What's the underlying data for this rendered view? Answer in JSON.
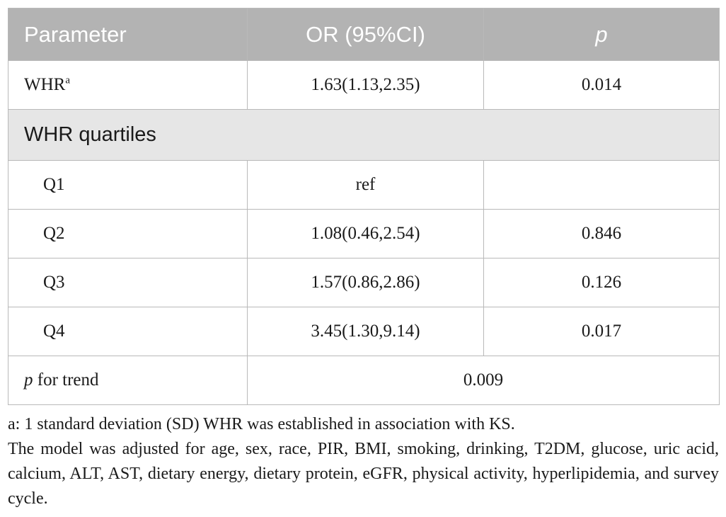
{
  "table": {
    "headers": {
      "parameter": "Parameter",
      "or": "OR (95%CI)",
      "p": "p"
    },
    "whr_row": {
      "label": "WHR",
      "superscript": "a",
      "or": "1.63(1.13,2.35)",
      "p": "0.014"
    },
    "section_label": "WHR quartiles",
    "quartiles": [
      {
        "label": "Q1",
        "or": "ref",
        "p": ""
      },
      {
        "label": "Q2",
        "or": "1.08(0.46,2.54)",
        "p": "0.846"
      },
      {
        "label": "Q3",
        "or": "1.57(0.86,2.86)",
        "p": "0.126"
      },
      {
        "label": "Q4",
        "or": "3.45(1.30,9.14)",
        "p": "0.017"
      }
    ],
    "trend_row": {
      "label_italic": "p",
      "label_rest": " for trend",
      "value": "0.009"
    }
  },
  "footnotes": {
    "a": "a: 1 standard deviation (SD) WHR was established in association with KS.",
    "model": "The model was adjusted for age, sex, race, PIR, BMI, smoking, drinking, T2DM, glucose, uric acid, calcium, ALT, AST, dietary energy, dietary protein, eGFR, physical activity, hyperlipidemia, and survey cycle."
  }
}
